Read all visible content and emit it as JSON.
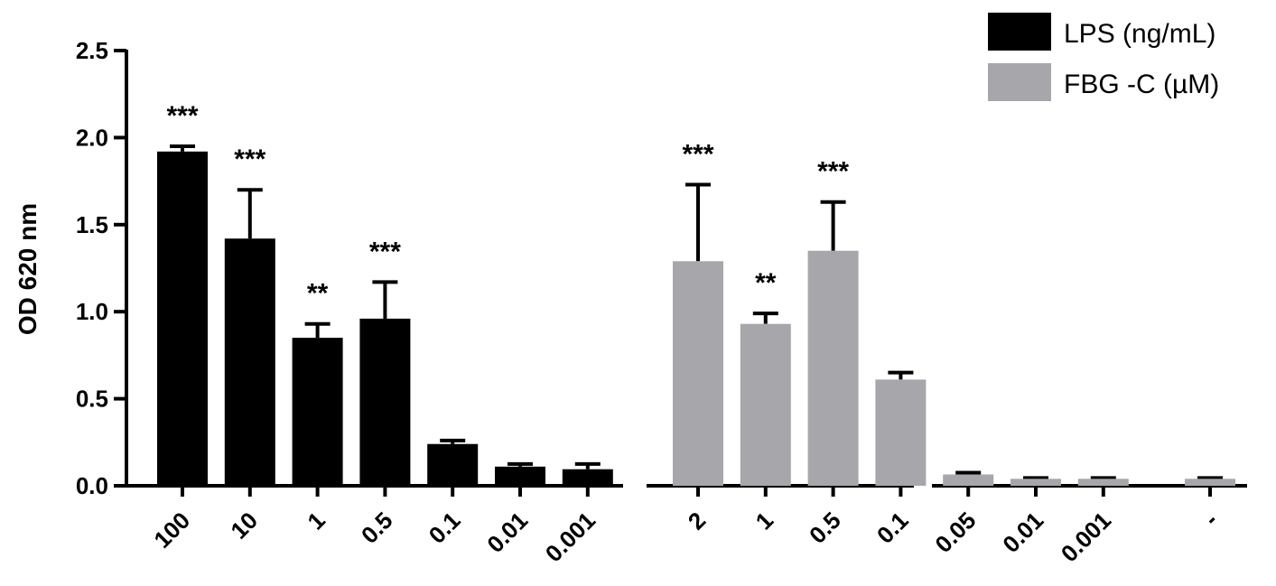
{
  "chart_data": {
    "type": "bar",
    "ylabel": "OD 620 nm",
    "ylim": [
      0,
      2.5
    ],
    "y_ticks": [
      "0.0",
      "0.5",
      "1.0",
      "1.5",
      "2.0",
      "2.5"
    ],
    "grid": false,
    "legend_position": "top-right",
    "series": [
      {
        "name": "LPS (ng/mL)",
        "color": "#000000",
        "categories": [
          "100",
          "10",
          "1",
          "0.5",
          "0.1",
          "0.01",
          "0.001"
        ],
        "values": [
          1.92,
          1.42,
          0.85,
          0.96,
          0.24,
          0.11,
          0.095
        ],
        "error_upper": [
          1.95,
          1.7,
          0.93,
          1.17,
          0.26,
          0.125,
          0.125
        ],
        "significance": [
          "***",
          "***",
          "**",
          "***",
          "",
          "",
          ""
        ]
      },
      {
        "name": "FBG -C (µM)",
        "color": "#A7A6AA",
        "categories": [
          "2",
          "1",
          "0.5",
          "0.1",
          "0.05",
          "0.01",
          "0.001"
        ],
        "values": [
          1.29,
          0.93,
          1.35,
          0.61,
          0.065,
          0.04,
          0.04
        ],
        "error_upper": [
          1.73,
          0.99,
          1.63,
          0.65,
          0.075,
          0.045,
          0.045
        ],
        "significance": [
          "***",
          "**",
          "***",
          "",
          "",
          "",
          ""
        ]
      },
      {
        "name": "",
        "color": "#A7A6AA",
        "categories": [
          "-"
        ],
        "values": [
          0.04
        ],
        "error_upper": [
          0.045
        ],
        "significance": [
          ""
        ]
      }
    ]
  }
}
